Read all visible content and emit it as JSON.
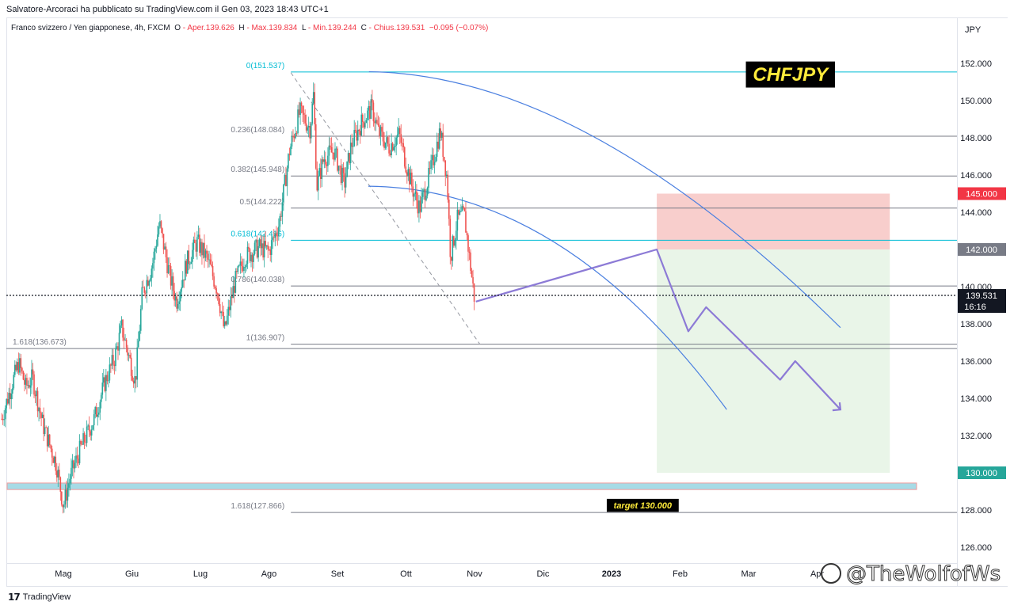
{
  "header": {
    "published": "Salvatore-Arcoraci ha pubblicato su TradingView.com il Gen 03, 2023 18:43 UTC+1",
    "symbol": "Franco svizzero / Yen giapponese, 4h, FXCM",
    "o_label": "O",
    "o_val": "- Aper.139.626",
    "h_label": "H",
    "h_val": "- Max.139.834",
    "l_label": "L",
    "l_val": "- Min.139.244",
    "c_label": "C",
    "c_val": "- Chius.139.531",
    "chg": "−0.095 (−0.07%)",
    "currency": "JPY"
  },
  "footer": {
    "brand": "TradingView",
    "watermark": "@TheWolfofWs"
  },
  "colors": {
    "up": "#26a69a",
    "down": "#ef5350",
    "fib": "#787b86",
    "fib_key": "#00bcd4",
    "arc": "#4a7fe0",
    "arrow": "#8c7ad6",
    "risk": "#f7c5c3",
    "reward": "#e9f5e8",
    "target_bg": "#000000",
    "target_fg": "#ffeb3b"
  },
  "chart_data": {
    "type": "candlestick",
    "timeframe": "4h",
    "y_axis": {
      "ylim": [
        125,
        153
      ],
      "ticks": [
        126,
        128,
        130,
        132,
        134,
        136,
        138,
        140,
        142,
        144,
        146,
        148,
        150,
        152
      ]
    },
    "x_axis": {
      "labels": [
        "Mag",
        "Giu",
        "Lug",
        "Ago",
        "Set",
        "Ott",
        "Nov",
        "Dic",
        "2023",
        "Feb",
        "Mar",
        "Apr"
      ],
      "label_time": [
        5,
        6,
        7,
        8,
        9,
        10,
        11,
        12,
        13,
        14,
        15,
        16
      ]
    },
    "price_path": [
      [
        4.1,
        132.9
      ],
      [
        4.25,
        134.8
      ],
      [
        4.35,
        135.9
      ],
      [
        4.45,
        134.6
      ],
      [
        4.55,
        135.1
      ],
      [
        4.7,
        132.6
      ],
      [
        4.9,
        130.4
      ],
      [
        5.0,
        128.2
      ],
      [
        5.1,
        129.8
      ],
      [
        5.25,
        131.3
      ],
      [
        5.45,
        132.9
      ],
      [
        5.6,
        134.8
      ],
      [
        5.75,
        136.2
      ],
      [
        5.85,
        137.8
      ],
      [
        6.0,
        135.6
      ],
      [
        6.05,
        134.9
      ],
      [
        6.15,
        139.6
      ],
      [
        6.3,
        141.2
      ],
      [
        6.4,
        143.4
      ],
      [
        6.55,
        140.6
      ],
      [
        6.65,
        139.2
      ],
      [
        6.8,
        141.3
      ],
      [
        6.95,
        142.4
      ],
      [
        7.1,
        141.5
      ],
      [
        7.25,
        139.8
      ],
      [
        7.35,
        137.6
      ],
      [
        7.5,
        140.2
      ],
      [
        7.65,
        141.6
      ],
      [
        7.85,
        142.1
      ],
      [
        8.0,
        141.9
      ],
      [
        8.15,
        143.4
      ],
      [
        8.3,
        147.3
      ],
      [
        8.45,
        149.4
      ],
      [
        8.6,
        148.5
      ],
      [
        8.65,
        150.3
      ],
      [
        8.7,
        145.4
      ],
      [
        8.8,
        146.9
      ],
      [
        8.95,
        147.3
      ],
      [
        9.1,
        145.5
      ],
      [
        9.2,
        147.6
      ],
      [
        9.35,
        148.8
      ],
      [
        9.5,
        149.6
      ],
      [
        9.6,
        148.3
      ],
      [
        9.75,
        147.5
      ],
      [
        9.9,
        148.2
      ],
      [
        10.0,
        146.6
      ],
      [
        10.1,
        145.2
      ],
      [
        10.2,
        144.2
      ],
      [
        10.35,
        146.1
      ],
      [
        10.5,
        148.4
      ],
      [
        10.6,
        145.8
      ],
      [
        10.65,
        141.6
      ],
      [
        10.75,
        143.6
      ],
      [
        10.85,
        143.9
      ],
      [
        11.0,
        139.3
      ]
    ],
    "last_price": 139.531,
    "countdown": "16:16",
    "fib_retracement": [
      {
        "label": "0(151.537)",
        "price": 151.537,
        "key": true
      },
      {
        "label": "0.236(148.084)",
        "price": 148.084,
        "key": false
      },
      {
        "label": "0.382(145.948)",
        "price": 145.948,
        "key": false
      },
      {
        "label": "0.5(144.222)",
        "price": 144.222,
        "key": false
      },
      {
        "label": "0.618(142.496)",
        "price": 142.496,
        "key": true
      },
      {
        "label": "0.786(140.038)",
        "price": 140.038,
        "key": false
      },
      {
        "label": "1(136.907)",
        "price": 136.907,
        "key": false
      }
    ],
    "fib_extension": [
      {
        "label": "1.618(136.673)",
        "price": 136.673
      },
      {
        "label": "1.618(127.866)",
        "price": 127.866
      }
    ],
    "annotations": {
      "title_box": "CHFJPY",
      "target_label": "target 130.000",
      "entry": 142.0,
      "stop": 145.0,
      "target": 130.0
    },
    "price_badges": [
      {
        "value": "145.000",
        "price": 145.0,
        "color": "#f23645"
      },
      {
        "value": "142.000",
        "price": 142.0,
        "color": "#787b86"
      },
      {
        "value": "130.000",
        "price": 130.0,
        "color": "#26a69a"
      }
    ]
  }
}
